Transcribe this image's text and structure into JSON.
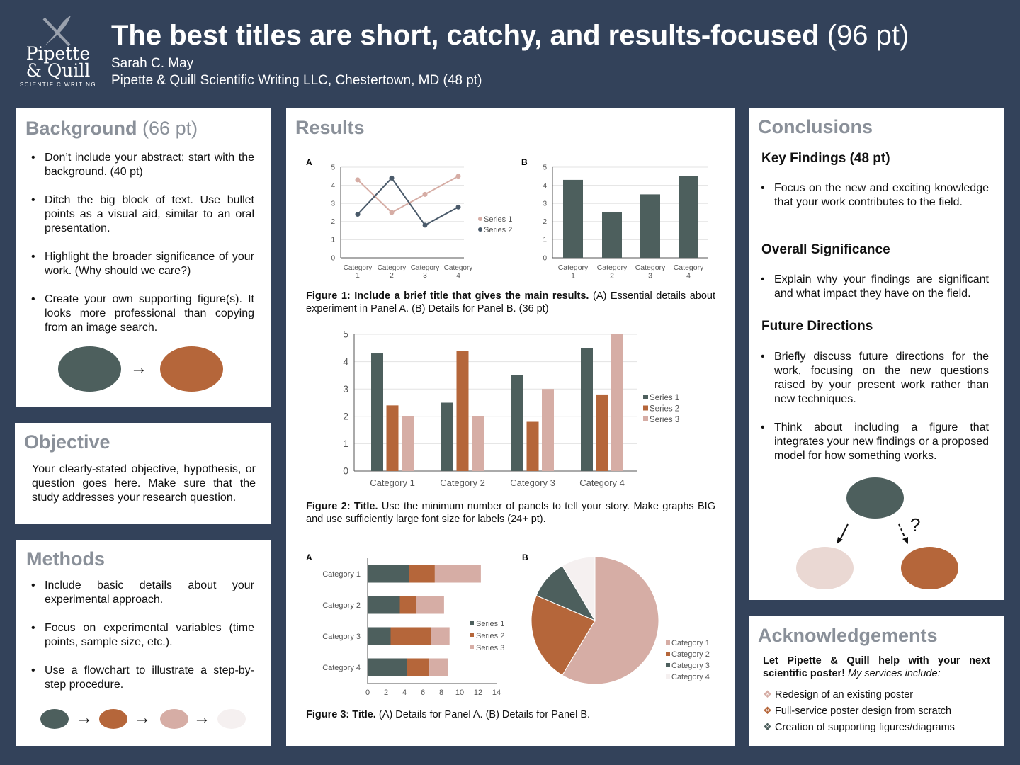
{
  "colors": {
    "background": "#33425a",
    "dark": "#4d5f5d",
    "orange": "#b5663a",
    "pink": "#d6ada5",
    "light": "#f5f0f0",
    "slate": "#4a5a6a",
    "heading": "#8a9099"
  },
  "logo": {
    "line1": "Pipette",
    "line2": "& Quill",
    "tagline": "SCIENTIFIC WRITING"
  },
  "header": {
    "title": "The best titles are short, catchy, and results-focused",
    "title_size": "(96 pt)",
    "author": "Sarah C. May",
    "affiliation": "Pipette & Quill Scientific Writing LLC, Chestertown, MD (48 pt)"
  },
  "background": {
    "title": "Background",
    "size": "(66 pt)",
    "bullets": [
      "Don’t include your abstract; start with the background. (40 pt)",
      "Ditch the big block of text. Use bullet points as a visual aid, similar to an oral presentation.",
      "Highlight the broader significance of your work. (Why should we care?)",
      "Create your own supporting figure(s). It looks more professional than copying from an image search."
    ]
  },
  "objective": {
    "title": "Objective",
    "text": "Your clearly-stated objective, hypothesis, or question goes here. Make sure that the study addresses your research question."
  },
  "methods": {
    "title": "Methods",
    "bullets": [
      "Include basic details about your experimental approach.",
      "Focus on experimental variables (time points, sample size, etc.).",
      "Use a flowchart to illustrate a step-by-step procedure."
    ]
  },
  "results": {
    "title": "Results",
    "fig1_caption": {
      "bold": "Figure 1: Include a brief title that gives the main results.",
      "rest": " (A) Essential details about experiment in Panel A. (B) Details for Panel B. (36 pt)"
    },
    "fig2_caption": {
      "bold": "Figure 2: Title.",
      "rest": " Use the minimum number of panels to tell your story. Make graphs BIG and use sufficiently large font size for labels (24+ pt)."
    },
    "fig3_caption": {
      "bold": "Figure 3: Title.",
      "rest": " (A) Details for Panel A. (B) Details for Panel B."
    }
  },
  "chart_data": [
    {
      "panel": "A",
      "type": "line",
      "categories": [
        "Category 1",
        "Category 2",
        "Category 3",
        "Category 4"
      ],
      "series": [
        {
          "name": "Series 1",
          "values": [
            4.3,
            2.5,
            3.5,
            4.5
          ]
        },
        {
          "name": "Series 2",
          "values": [
            2.4,
            4.4,
            1.8,
            2.8
          ]
        }
      ],
      "ylim": [
        0,
        5
      ],
      "yticks": [
        0,
        1,
        2,
        3,
        4,
        5
      ],
      "grid": true,
      "legend": "right"
    },
    {
      "panel": "B",
      "type": "bar",
      "categories": [
        "Category 1",
        "Category 2",
        "Category 3",
        "Category 4"
      ],
      "values": [
        4.3,
        2.5,
        3.5,
        4.5
      ],
      "ylim": [
        0,
        5
      ],
      "yticks": [
        0,
        1,
        2,
        3,
        4,
        5
      ],
      "grid": true
    },
    {
      "type": "bar",
      "categories": [
        "Category 1",
        "Category 2",
        "Category 3",
        "Category 4"
      ],
      "series": [
        {
          "name": "Series 1",
          "values": [
            4.3,
            2.5,
            3.5,
            4.5
          ]
        },
        {
          "name": "Series 2",
          "values": [
            2.4,
            4.4,
            1.8,
            2.8
          ]
        },
        {
          "name": "Series 3",
          "values": [
            2,
            2,
            3,
            5
          ]
        }
      ],
      "ylim": [
        0,
        5
      ],
      "yticks": [
        0,
        1,
        2,
        3,
        4,
        5
      ],
      "grid": true,
      "legend": "right"
    },
    {
      "panel": "A",
      "type": "bar",
      "orientation": "horizontal",
      "stacked": true,
      "categories": [
        "Category 1",
        "Category 2",
        "Category 3",
        "Category 4"
      ],
      "series": [
        {
          "name": "Series 1",
          "values": [
            4.5,
            3.5,
            2.5,
            4.3
          ]
        },
        {
          "name": "Series 2",
          "values": [
            2.8,
            1.8,
            4.4,
            2.4
          ]
        },
        {
          "name": "Series 3",
          "values": [
            5,
            3,
            2,
            2
          ]
        }
      ],
      "xlim": [
        0,
        14
      ],
      "xticks": [
        0,
        2,
        4,
        6,
        8,
        10,
        12,
        14
      ],
      "legend": "right"
    },
    {
      "panel": "B",
      "type": "pie",
      "categories": [
        "Category 1",
        "Category 2",
        "Category 3",
        "Category 4"
      ],
      "values": [
        8.2,
        3.2,
        1.4,
        1.2
      ],
      "legend": "right"
    }
  ],
  "conclusions": {
    "title": "Conclusions",
    "key_title": "Key Findings (48 pt)",
    "key_bullets": [
      "Focus on the new and exciting knowledge that your work contributes to the field."
    ],
    "sig_title": "Overall Significance",
    "sig_bullets": [
      "Explain why your findings are significant and what impact they have on the field."
    ],
    "future_title": "Future Directions",
    "future_bullets": [
      "Briefly discuss future directions for the work, focusing on the new questions raised by your present work rather than new techniques.",
      "Think about including a figure that integrates your new findings or a proposed model for how something works."
    ],
    "question_mark": "?"
  },
  "acknowledgements": {
    "title": "Acknowledgements",
    "intro_bold": "Let Pipette & Quill help with your next scientific poster!",
    "intro_italic": " My services include:",
    "items": [
      "Redesign of an existing poster",
      "Full-service poster design from scratch",
      "Creation of supporting figures/diagrams"
    ]
  },
  "arrow": "→"
}
